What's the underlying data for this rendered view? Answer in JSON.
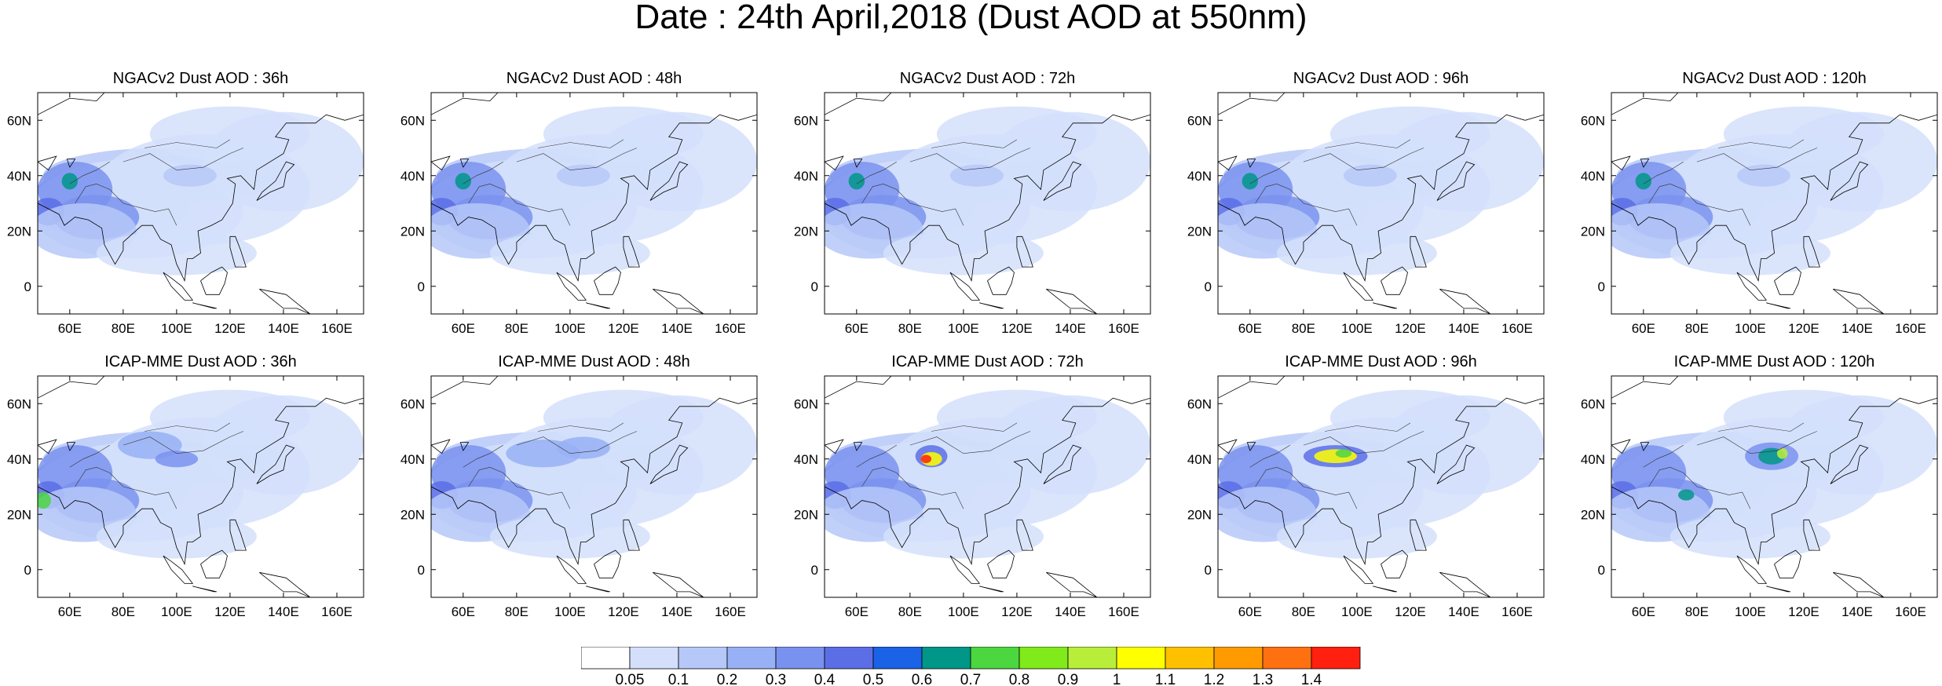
{
  "title": "Date : 24th April,2018 (Dust AOD at 550nm)",
  "panels": [
    {
      "title": "NGACv2 Dust AOD : 36h",
      "model": "ngac",
      "lead": 36
    },
    {
      "title": "NGACv2 Dust AOD : 48h",
      "model": "ngac",
      "lead": 48
    },
    {
      "title": "NGACv2 Dust AOD : 72h",
      "model": "ngac",
      "lead": 72
    },
    {
      "title": "NGACv2 Dust AOD : 96h",
      "model": "ngac",
      "lead": 96
    },
    {
      "title": "NGACv2 Dust AOD : 120h",
      "model": "ngac",
      "lead": 120
    },
    {
      "title": "ICAP-MME Dust AOD : 36h",
      "model": "icap",
      "lead": 36
    },
    {
      "title": "ICAP-MME Dust AOD : 48h",
      "model": "icap",
      "lead": 48
    },
    {
      "title": "ICAP-MME Dust AOD : 72h",
      "model": "icap",
      "lead": 72
    },
    {
      "title": "ICAP-MME Dust AOD : 96h",
      "model": "icap",
      "lead": 96
    },
    {
      "title": "ICAP-MME Dust AOD : 120h",
      "model": "icap",
      "lead": 120
    }
  ],
  "map": {
    "lon_range": [
      48,
      170
    ],
    "lat_range": [
      -10,
      70
    ],
    "lon_ticks": [
      {
        "v": 60,
        "label": "60E"
      },
      {
        "v": 80,
        "label": "80E"
      },
      {
        "v": 100,
        "label": "100E"
      },
      {
        "v": 120,
        "label": "120E"
      },
      {
        "v": 140,
        "label": "140E"
      },
      {
        "v": 160,
        "label": "160E"
      }
    ],
    "lat_ticks": [
      {
        "v": 0,
        "label": "0"
      },
      {
        "v": 20,
        "label": "20N"
      },
      {
        "v": 40,
        "label": "40N"
      },
      {
        "v": 60,
        "label": "60N"
      }
    ]
  },
  "colorbar": {
    "labels": [
      "0.05",
      "0.1",
      "0.2",
      "0.3",
      "0.4",
      "0.5",
      "0.6",
      "0.7",
      "0.8",
      "0.9",
      "1",
      "1.1",
      "1.2",
      "1.3",
      "1.4"
    ],
    "colors": [
      "#ffffff",
      "#d4e0fb",
      "#b6c8f8",
      "#98b0f5",
      "#7a92ef",
      "#5c6ee6",
      "#1a62e6",
      "#009688",
      "#4cd640",
      "#80ea1a",
      "#b8ee3a",
      "#ffff00",
      "#ffc000",
      "#ff9a00",
      "#ff7010",
      "#ff2010"
    ]
  }
}
